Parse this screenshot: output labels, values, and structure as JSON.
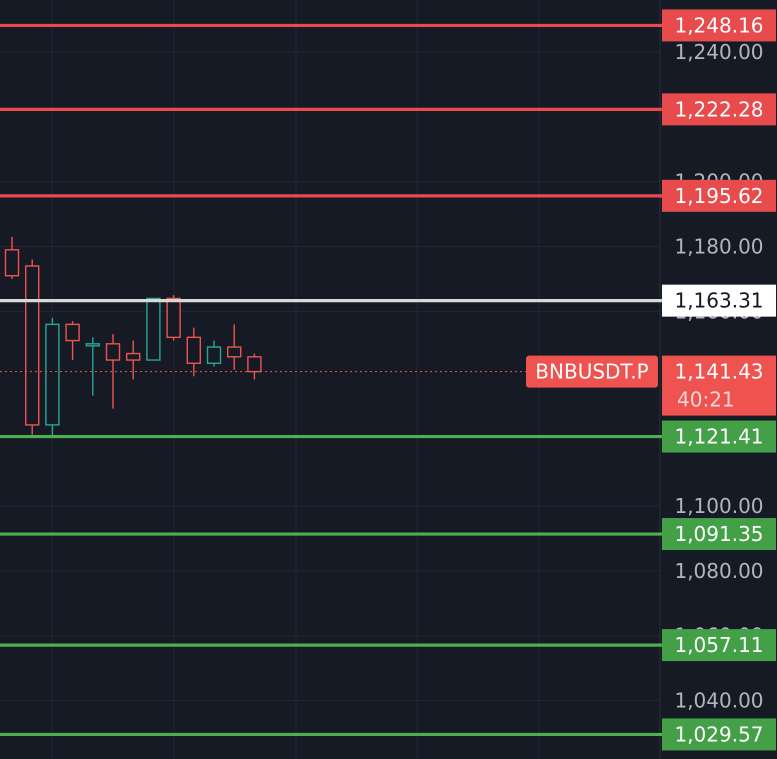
{
  "chart_data": {
    "type": "candlestick",
    "symbol": "BNBUSDT.P",
    "ylim": [
      1022,
      1256
    ],
    "y_ticks": [
      1040,
      1060,
      1080,
      1100,
      1160,
      1180,
      1200,
      1240
    ],
    "y_tick_labels": [
      "1,040.00",
      "1,060.00",
      "1,080.00",
      "1,100.00",
      "1,160.00",
      "1,180.00",
      "1,200.00",
      "1,240.00"
    ],
    "candles": [
      {
        "o": 1179,
        "h": 1183,
        "l": 1170,
        "c": 1171
      },
      {
        "o": 1174,
        "h": 1176,
        "l": 1122,
        "c": 1125
      },
      {
        "o": 1125,
        "h": 1158,
        "l": 1121,
        "c": 1156
      },
      {
        "o": 1156,
        "h": 1157,
        "l": 1145,
        "c": 1151
      },
      {
        "o": 1150,
        "h": 1152,
        "l": 1134,
        "c": 1150
      },
      {
        "o": 1150,
        "h": 1153,
        "l": 1130,
        "c": 1145
      },
      {
        "o": 1147,
        "h": 1151,
        "l": 1139,
        "c": 1145
      },
      {
        "o": 1145,
        "h": 1164,
        "l": 1145,
        "c": 1164
      },
      {
        "o": 1164,
        "h": 1165,
        "l": 1151,
        "c": 1152
      },
      {
        "o": 1152,
        "h": 1155,
        "l": 1140,
        "c": 1144
      },
      {
        "o": 1144,
        "h": 1151,
        "l": 1143,
        "c": 1149
      },
      {
        "o": 1149,
        "h": 1156,
        "l": 1142,
        "c": 1146
      },
      {
        "o": 1146,
        "h": 1147,
        "l": 1139,
        "c": 1141.43
      }
    ],
    "resistance_levels": [
      {
        "value": 1248.16,
        "label": "1,248.16"
      },
      {
        "value": 1222.28,
        "label": "1,222.28"
      },
      {
        "value": 1195.62,
        "label": "1,195.62"
      }
    ],
    "support_levels": [
      {
        "value": 1121.41,
        "label": "1,121.41"
      },
      {
        "value": 1091.35,
        "label": "1,091.35"
      },
      {
        "value": 1057.11,
        "label": "1,057.11"
      },
      {
        "value": 1029.57,
        "label": "1,029.57"
      }
    ],
    "reference_level": {
      "value": 1163.31,
      "label": "1,163.31"
    },
    "current_price": {
      "value": 1141.43,
      "label": "1,141.43",
      "countdown": "40:21"
    },
    "colors": {
      "background": "#161a25",
      "grid": "#232733",
      "up": "#26a69a",
      "down": "#ef5350",
      "resistance": "#e84b4b",
      "support": "#4caf50",
      "support_label_bg": "#43a047",
      "reference": "#d8d8d8",
      "axis_text": "#b2b5be"
    }
  }
}
